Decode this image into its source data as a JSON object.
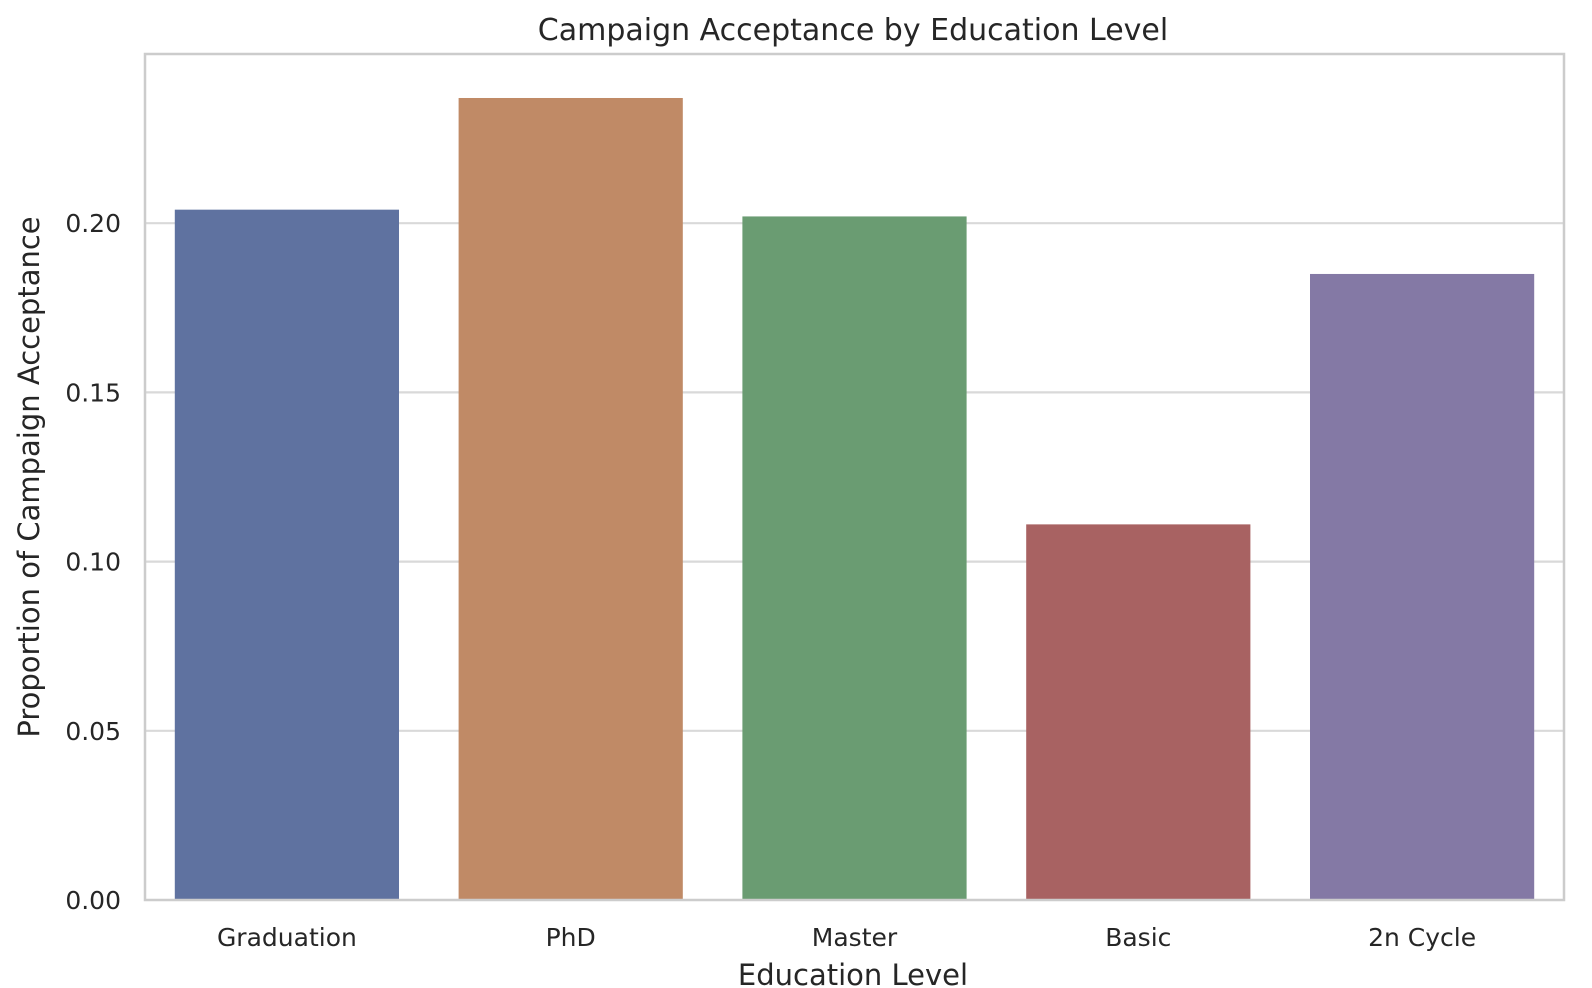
{
  "chart_data": {
    "type": "bar",
    "title": "Campaign Acceptance by Education Level",
    "xlabel": "Education Level",
    "ylabel": "Proportion of Campaign Acceptance",
    "categories": [
      "Graduation",
      "PhD",
      "Master",
      "Basic",
      "2n Cycle"
    ],
    "values": [
      0.204,
      0.237,
      0.202,
      0.111,
      0.185
    ],
    "colors": [
      "#5f72a0",
      "#c08a66",
      "#6a9c72",
      "#a86262",
      "#8479a5"
    ],
    "ylim": [
      0,
      0.25
    ],
    "yticks": [
      "0.00",
      "0.05",
      "0.10",
      "0.15",
      "0.20"
    ],
    "grid": true,
    "legend": "none"
  }
}
